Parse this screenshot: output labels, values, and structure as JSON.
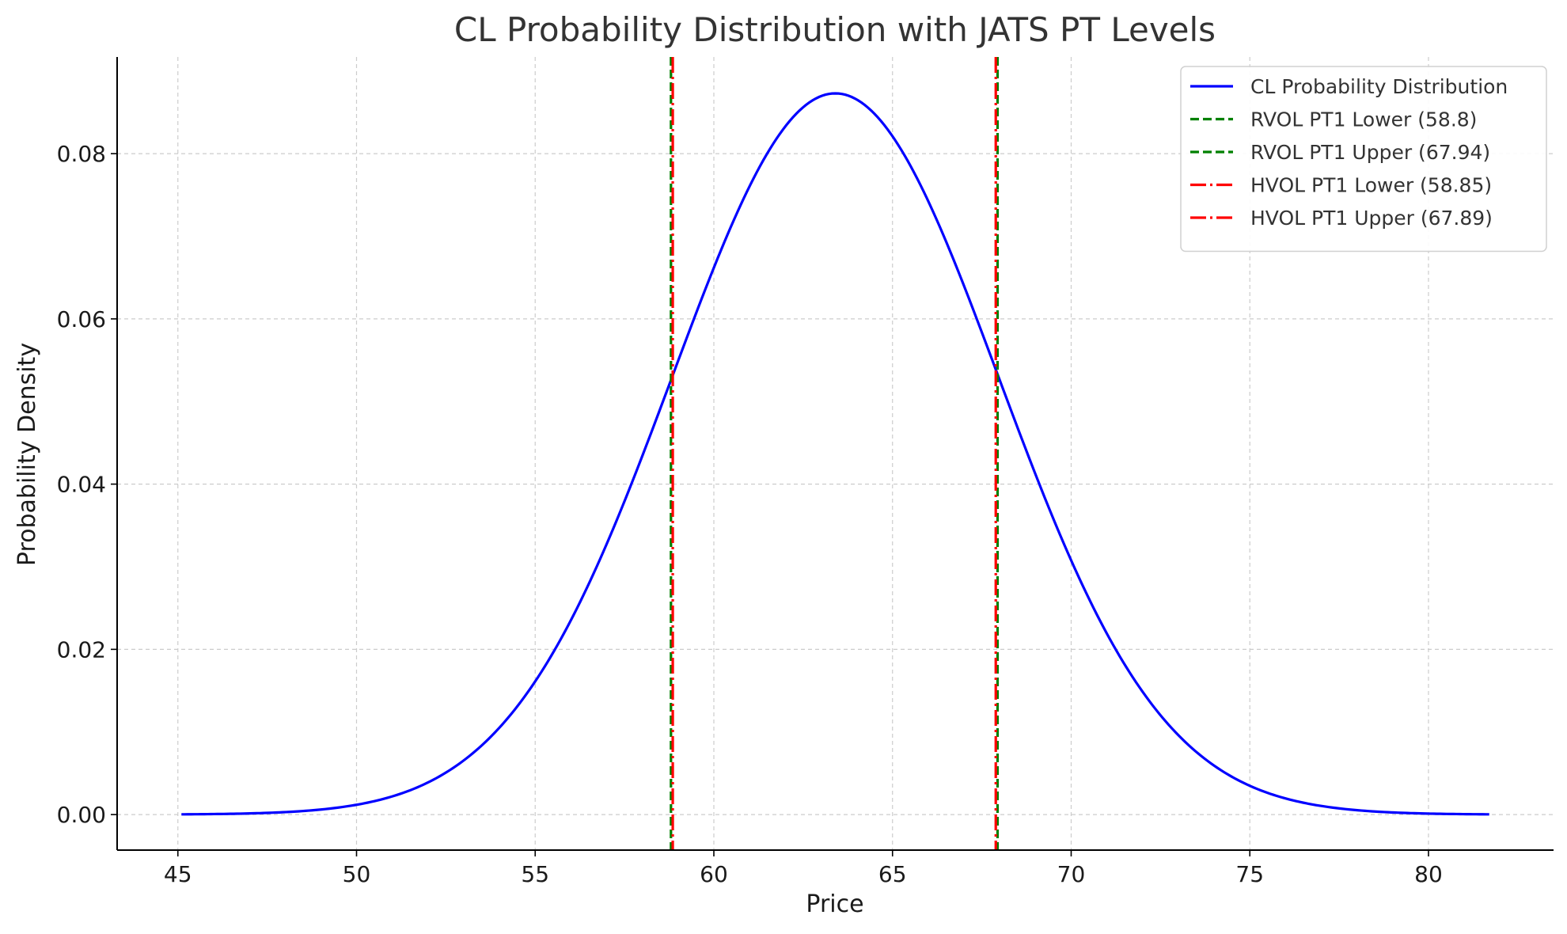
{
  "chart_data": {
    "type": "line",
    "title": "CL Probability Distribution with JATS PT Levels",
    "xlabel": "Price",
    "ylabel": "Probability Density",
    "xlim": [
      43.3,
      83.5
    ],
    "ylim": [
      -0.0043,
      0.0917
    ],
    "xticks": [
      45,
      50,
      55,
      60,
      65,
      70,
      75,
      80
    ],
    "xtick_labels": [
      "45",
      "50",
      "55",
      "60",
      "65",
      "70",
      "75",
      "80"
    ],
    "yticks": [
      0.0,
      0.02,
      0.04,
      0.06,
      0.08
    ],
    "ytick_labels": [
      "0.00",
      "0.02",
      "0.04",
      "0.06",
      "0.08"
    ],
    "grid": true,
    "legend_position": "top-right",
    "series": [
      {
        "name": "CL Probability Distribution",
        "kind": "normal-pdf",
        "mean": 63.4,
        "std": 4.57,
        "x_range": [
          45.1,
          81.7
        ],
        "color": "#0000ff",
        "style": "solid"
      }
    ],
    "vlines": [
      {
        "name": "RVOL PT1 Lower (58.8)",
        "x": 58.8,
        "color": "#008000",
        "style": "dashed"
      },
      {
        "name": "RVOL PT1 Upper (67.94)",
        "x": 67.94,
        "color": "#008000",
        "style": "dashed"
      },
      {
        "name": "HVOL PT1 Lower (58.85)",
        "x": 58.85,
        "color": "#ff0000",
        "style": "dashdot"
      },
      {
        "name": "HVOL PT1 Upper (67.89)",
        "x": 67.89,
        "color": "#ff0000",
        "style": "dashdot"
      }
    ]
  }
}
